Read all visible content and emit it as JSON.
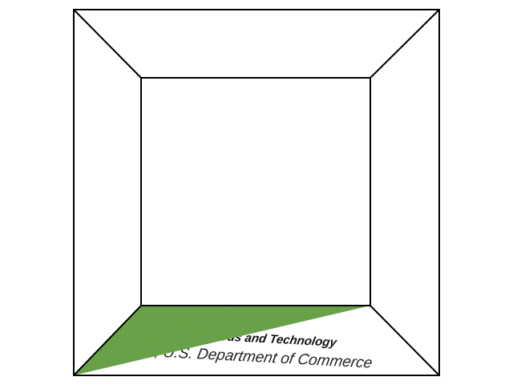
{
  "scene": {
    "floor_texture": {
      "line1": "Technology Administration, U.S. Department of Commerce",
      "line2": "National Institute of Standards and Technology"
    },
    "colors": {
      "background": "#ffffff",
      "edges": "#000000",
      "grass_dark": "#3f7a2a",
      "grass_mid": "#5c9a3a",
      "grass_light": "#7fb455"
    }
  }
}
